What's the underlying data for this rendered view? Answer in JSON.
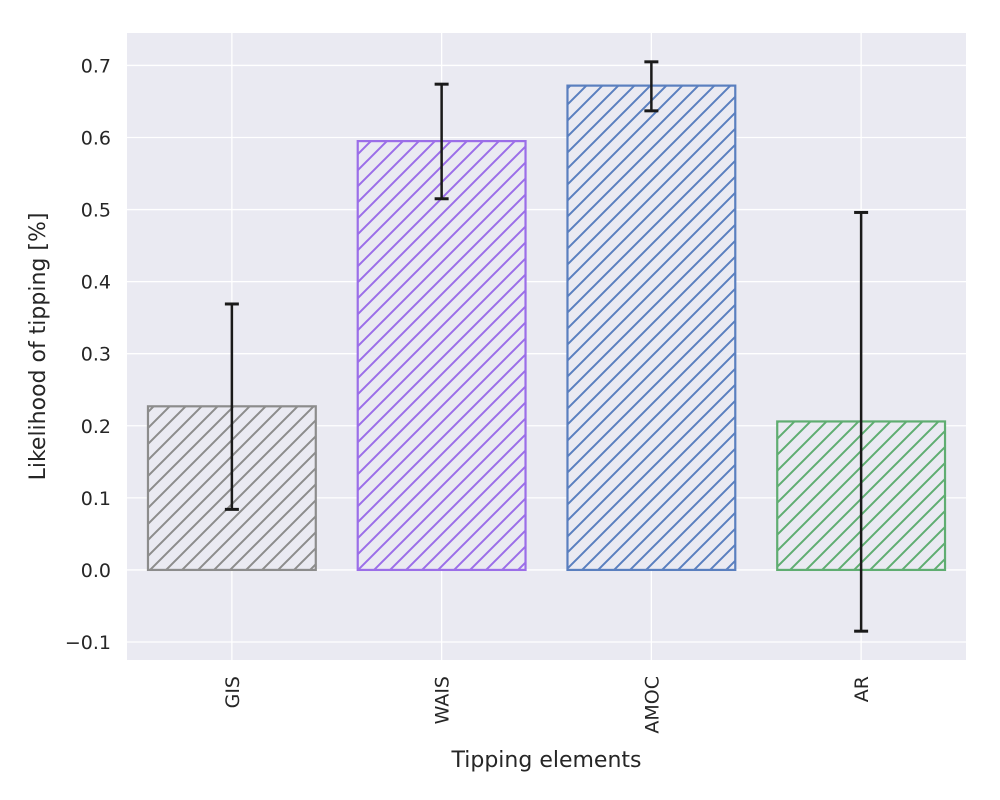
{
  "chart_data": {
    "type": "bar",
    "categories": [
      "GIS",
      "WAIS",
      "AMOC",
      "AR"
    ],
    "values": [
      0.227,
      0.595,
      0.672,
      0.206
    ],
    "error_low": [
      0.084,
      0.515,
      0.637,
      -0.085
    ],
    "error_high": [
      0.369,
      0.674,
      0.705,
      0.496
    ],
    "colors": [
      "#8c8c8c",
      "#9b6ee8",
      "#5a7fbf",
      "#5fad71"
    ],
    "hatch": "diagonal",
    "xlabel": "Tipping elements",
    "ylabel": "Likelihood of tipping [%]",
    "ylim": [
      -0.125,
      0.745
    ],
    "yticks": [
      -0.1,
      0.0,
      0.1,
      0.2,
      0.3,
      0.4,
      0.5,
      0.6,
      0.7
    ],
    "ytick_labels": [
      "−0.1",
      "0.0",
      "0.1",
      "0.2",
      "0.3",
      "0.4",
      "0.5",
      "0.6",
      "0.7"
    ],
    "grid": true,
    "background": "#eaeaf2",
    "error_color": "#1a1a1a"
  }
}
